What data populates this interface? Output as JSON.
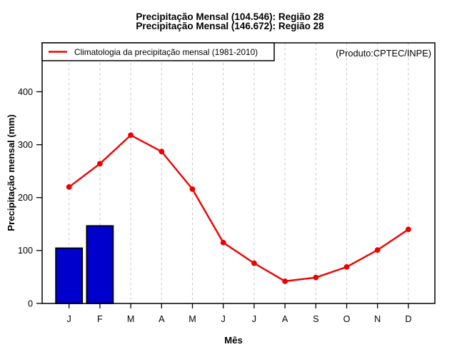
{
  "chart_data": {
    "type": "bar+line",
    "title": "Precipitação Mensal (104.546): Região 28",
    "subtitle": "Precipitação Mensal (146.672): Região 28",
    "annotation": "(Produto:CPTEC/INPE)",
    "xlabel": "Mês",
    "ylabel": "Precipitação mensal (mm)",
    "categories": [
      "J",
      "F",
      "M",
      "A",
      "M",
      "J",
      "J",
      "A",
      "S",
      "O",
      "N",
      "D"
    ],
    "yticks": [
      0,
      100,
      200,
      300,
      400
    ],
    "ylim": [
      0,
      492
    ],
    "grid": "vertical-dashed",
    "legend_position": "top-left",
    "series": [
      {
        "type": "bar",
        "color": "#0000cd",
        "values": [
          104.546,
          146.672,
          null,
          null,
          null,
          null,
          null,
          null,
          null,
          null,
          null,
          null
        ]
      },
      {
        "name": "Climatologia da precipitação mensal (1981-2010)",
        "type": "line",
        "color": "#ee0000",
        "values": [
          220,
          264,
          318,
          287,
          216,
          115,
          76,
          42,
          49,
          69,
          101,
          140
        ]
      }
    ]
  },
  "colors": {
    "bar": "#0000cd",
    "bar_border": "#000000",
    "line": "#ee0000",
    "grid": "#c8c8c8",
    "axis": "#000000",
    "annotation": "#9c9c9c",
    "background": "#ffffff"
  }
}
